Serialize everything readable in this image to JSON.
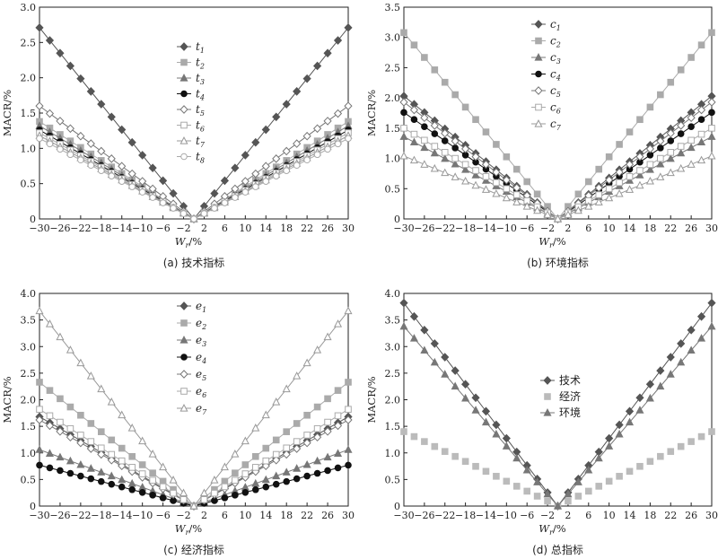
{
  "chart_data": [
    {
      "type": "line",
      "caption": "(a) 技术指标",
      "xlabel": "Wr/%",
      "ylabel": "MACR/%",
      "xlim": [
        -30,
        30
      ],
      "ylim": [
        0,
        3.0
      ],
      "xticks": [
        "−30",
        "−26",
        "−22",
        "−18",
        "−14",
        "−10",
        "−6",
        "−2",
        "2",
        "6",
        "10",
        "14",
        "18",
        "22",
        "26",
        "30"
      ],
      "yticks": [
        "0",
        "0.5",
        "1.0",
        "1.5",
        "2.0",
        "2.5",
        "3.0"
      ],
      "x": [
        -30,
        -28,
        -26,
        -24,
        -22,
        -20,
        -18,
        -16,
        -14,
        -12,
        -10,
        -8,
        -6,
        -4,
        -2,
        0,
        2,
        4,
        6,
        8,
        10,
        12,
        14,
        16,
        18,
        20,
        22,
        24,
        26,
        28,
        30
      ],
      "legend_position": "top-center",
      "series": [
        {
          "name": "t1",
          "base": "t",
          "sub": "1",
          "marker": "diamond-filled",
          "color": "#555555",
          "slope": 2.71
        },
        {
          "name": "t2",
          "base": "t",
          "sub": "2",
          "marker": "square-filled",
          "color": "#aaaaaa",
          "slope": 1.38
        },
        {
          "name": "t3",
          "base": "t",
          "sub": "3",
          "marker": "triangle-filled",
          "color": "#777777",
          "slope": 1.32
        },
        {
          "name": "t4",
          "base": "t",
          "sub": "4",
          "marker": "circle-filled",
          "color": "#111111",
          "slope": 1.26
        },
        {
          "name": "t5",
          "base": "t",
          "sub": "5",
          "marker": "diamond-open",
          "color": "#777777",
          "slope": 1.6
        },
        {
          "name": "t6",
          "base": "t",
          "sub": "6",
          "marker": "square-open",
          "color": "#aaaaaa",
          "slope": 1.22
        },
        {
          "name": "t7",
          "base": "t",
          "sub": "7",
          "marker": "triangle-open",
          "color": "#999999",
          "slope": 1.18
        },
        {
          "name": "t8",
          "base": "t",
          "sub": "8",
          "marker": "circle-open",
          "color": "#aaaaaa",
          "slope": 1.14
        }
      ]
    },
    {
      "type": "line",
      "caption": "(b) 环境指标",
      "xlabel": "Wr/%",
      "ylabel": "MACR/%",
      "xlim": [
        -30,
        30
      ],
      "ylim": [
        0,
        3.5
      ],
      "xticks": [
        "−30",
        "−26",
        "−22",
        "−18",
        "−14",
        "−10",
        "−6",
        "−2",
        "2",
        "6",
        "10",
        "14",
        "18",
        "22",
        "26",
        "30"
      ],
      "yticks": [
        "0",
        "0.5",
        "1.0",
        "1.5",
        "2.0",
        "2.5",
        "3.0",
        "3.5"
      ],
      "x": [
        -30,
        -28,
        -26,
        -24,
        -22,
        -20,
        -18,
        -16,
        -14,
        -12,
        -10,
        -8,
        -6,
        -4,
        -2,
        0,
        2,
        4,
        6,
        8,
        10,
        12,
        14,
        16,
        18,
        20,
        22,
        24,
        26,
        28,
        30
      ],
      "legend_position": "top-center",
      "series": [
        {
          "name": "c1",
          "base": "c",
          "sub": "1",
          "marker": "diamond-filled",
          "color": "#555555",
          "slope": 2.03
        },
        {
          "name": "c2",
          "base": "c",
          "sub": "2",
          "marker": "square-filled",
          "color": "#aaaaaa",
          "slope": 3.08
        },
        {
          "name": "c3",
          "base": "c",
          "sub": "3",
          "marker": "triangle-filled",
          "color": "#777777",
          "slope": 1.36
        },
        {
          "name": "c4",
          "base": "c",
          "sub": "4",
          "marker": "circle-filled",
          "color": "#111111",
          "slope": 1.76
        },
        {
          "name": "c5",
          "base": "c",
          "sub": "5",
          "marker": "diamond-open",
          "color": "#777777",
          "slope": 1.93
        },
        {
          "name": "c6",
          "base": "c",
          "sub": "6",
          "marker": "square-open",
          "color": "#aaaaaa",
          "slope": 1.5
        },
        {
          "name": "c7",
          "base": "c",
          "sub": "7",
          "marker": "triangle-open",
          "color": "#999999",
          "slope": 1.04
        }
      ]
    },
    {
      "type": "line",
      "caption": "(c) 经济指标",
      "xlabel": "Wr/%",
      "ylabel": "MACR/%",
      "xlim": [
        -30,
        30
      ],
      "ylim": [
        0,
        4.0
      ],
      "xticks": [
        "−30",
        "−26",
        "−22",
        "−18",
        "−14",
        "−10",
        "−6",
        "−2",
        "2",
        "6",
        "10",
        "14",
        "18",
        "22",
        "26",
        "30"
      ],
      "yticks": [
        "0",
        "0.5",
        "1.0",
        "1.5",
        "2.0",
        "2.5",
        "3.0",
        "3.5",
        "4.0"
      ],
      "x": [
        -30,
        -28,
        -26,
        -24,
        -22,
        -20,
        -18,
        -16,
        -14,
        -12,
        -10,
        -8,
        -6,
        -4,
        -2,
        0,
        2,
        4,
        6,
        8,
        10,
        12,
        14,
        16,
        18,
        20,
        22,
        24,
        26,
        28,
        30
      ],
      "legend_position": "top-center",
      "series": [
        {
          "name": "e1",
          "base": "e",
          "sub": "1",
          "marker": "diamond-filled",
          "color": "#555555",
          "slope": 1.68
        },
        {
          "name": "e2",
          "base": "e",
          "sub": "2",
          "marker": "square-filled",
          "color": "#aaaaaa",
          "slope": 2.33
        },
        {
          "name": "e3",
          "base": "e",
          "sub": "3",
          "marker": "triangle-filled",
          "color": "#777777",
          "slope": 1.06
        },
        {
          "name": "e4",
          "base": "e",
          "sub": "4",
          "marker": "circle-filled",
          "color": "#111111",
          "slope": 0.77
        },
        {
          "name": "e5",
          "base": "e",
          "sub": "5",
          "marker": "diamond-open",
          "color": "#777777",
          "slope": 1.62
        },
        {
          "name": "e6",
          "base": "e",
          "sub": "6",
          "marker": "square-open",
          "color": "#aaaaaa",
          "slope": 1.82
        },
        {
          "name": "e7",
          "base": "e",
          "sub": "7",
          "marker": "triangle-open",
          "color": "#999999",
          "slope": 3.67
        }
      ]
    },
    {
      "type": "line",
      "caption": "(d) 总指标",
      "xlabel": "Wr/%",
      "ylabel": "MACR/%",
      "xlim": [
        -30,
        30
      ],
      "ylim": [
        0,
        4.0
      ],
      "xticks": [
        "−30",
        "−26",
        "−22",
        "−18",
        "−14",
        "−10",
        "−6",
        "−2",
        "2",
        "6",
        "10",
        "14",
        "18",
        "22",
        "26",
        "30"
      ],
      "yticks": [
        "0",
        "0.5",
        "1.0",
        "1.5",
        "2.0",
        "2.5",
        "3.0",
        "3.5",
        "4.0"
      ],
      "x": [
        -30,
        -28,
        -26,
        -24,
        -22,
        -20,
        -18,
        -16,
        -14,
        -12,
        -10,
        -8,
        -6,
        -4,
        -2,
        0,
        2,
        4,
        6,
        8,
        10,
        12,
        14,
        16,
        18,
        20,
        22,
        24,
        26,
        28,
        30
      ],
      "legend_position": "center",
      "series": [
        {
          "name": "技术",
          "marker": "diamond-filled",
          "color": "#555555",
          "slope": 3.82
        },
        {
          "name": "经济",
          "marker": "square-filled",
          "color": "#bbbbbb",
          "slope": 1.4,
          "noline": true
        },
        {
          "name": "环境",
          "marker": "triangle-filled",
          "color": "#777777",
          "slope": 3.38
        }
      ]
    }
  ]
}
